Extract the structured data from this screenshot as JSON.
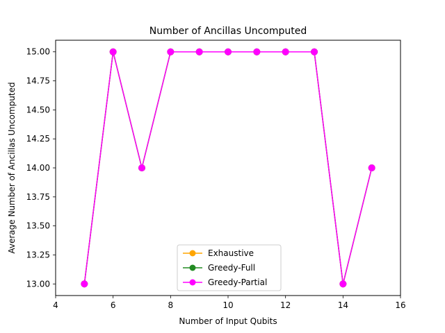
{
  "chart_data": {
    "type": "line",
    "title": "Number of Ancillas Uncomputed",
    "xlabel": "Number of Input Qubits",
    "ylabel": "Average Number of Ancillas Uncomputed",
    "xlim": [
      4,
      16
    ],
    "ylim": [
      12.9,
      15.1
    ],
    "xticks": [
      4,
      6,
      8,
      10,
      12,
      14,
      16
    ],
    "yticks": [
      13.0,
      13.25,
      13.5,
      13.75,
      14.0,
      14.25,
      14.5,
      14.75,
      15.0
    ],
    "ytick_labels": [
      "13.00",
      "13.25",
      "13.50",
      "13.75",
      "14.00",
      "14.25",
      "14.50",
      "14.75",
      "15.00"
    ],
    "grid": false,
    "legend_position": "lower-center",
    "x": [
      5,
      6,
      7,
      8,
      9,
      10,
      11,
      12,
      13,
      14,
      15
    ],
    "series": [
      {
        "name": "Exhaustive",
        "color": "#ffa500",
        "marker": "circle",
        "values": [
          13,
          15,
          14,
          15,
          15,
          15,
          15,
          15,
          15,
          13,
          14
        ]
      },
      {
        "name": "Greedy-Full",
        "color": "#228b22",
        "marker": "circle",
        "values": [
          13,
          15,
          14,
          15,
          15,
          15,
          15,
          15,
          15,
          13,
          14
        ]
      },
      {
        "name": "Greedy-Partial",
        "color": "#ff00ff",
        "marker": "circle",
        "values": [
          13,
          15,
          14,
          15,
          15,
          15,
          15,
          15,
          15,
          13,
          14
        ]
      }
    ]
  }
}
